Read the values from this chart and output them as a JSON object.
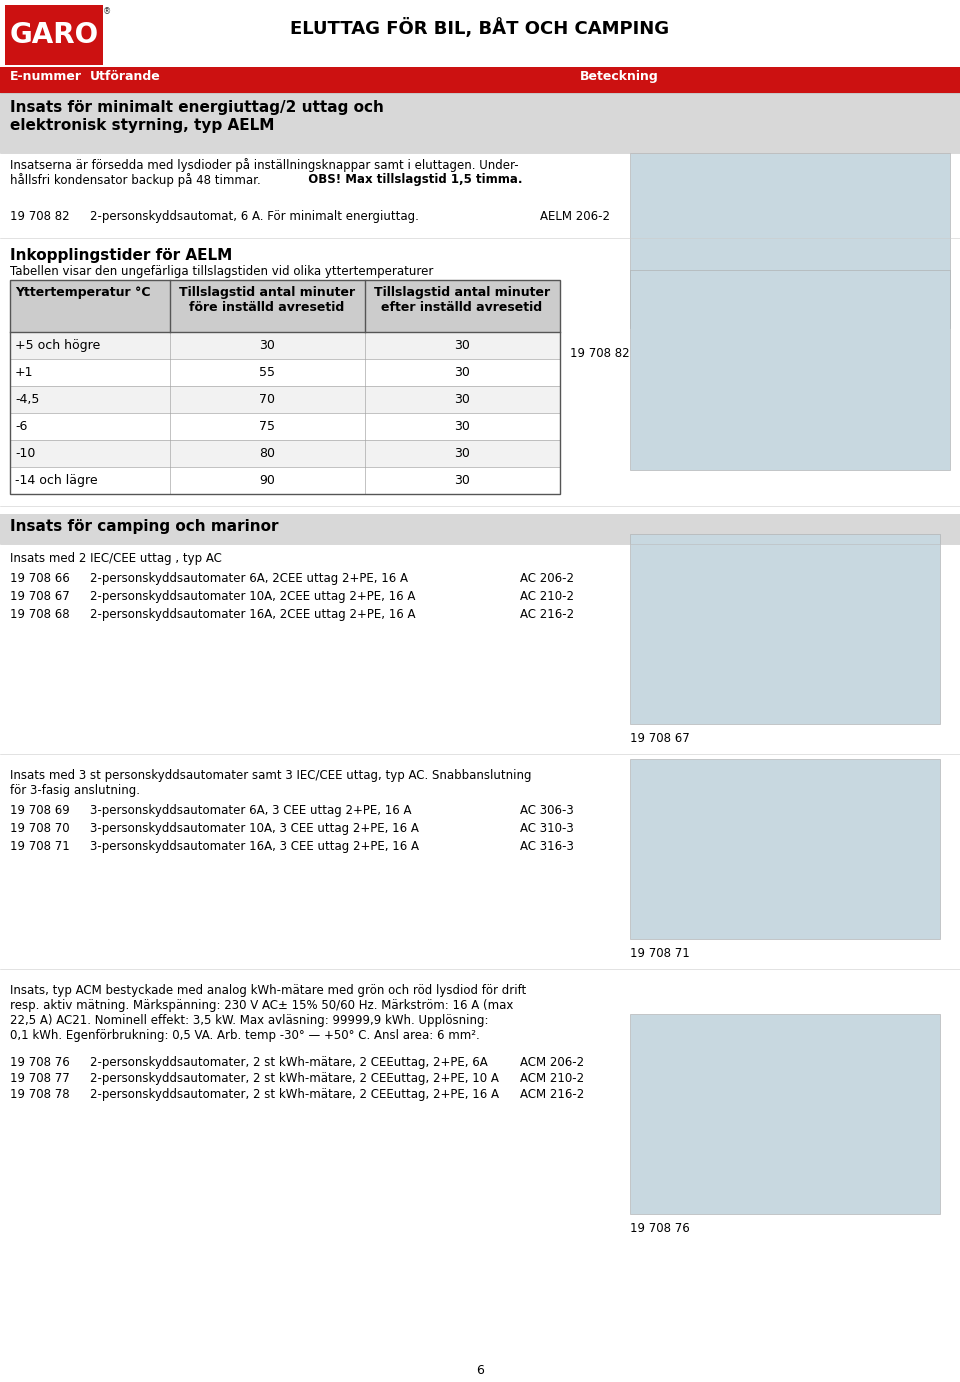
{
  "page_title": "ELUTTAG FÖR BIL, BÅT OCH CAMPING",
  "header_col1": "E-nummer",
  "header_col2": "Utförande",
  "header_col3": "Beteckning",
  "sec1_title_line1": "Insats för minimalt energiuttag/2 uttag och",
  "sec1_title_line2": "elektronisk styrning, typ AELM",
  "sec1_body1": "Insatserna är försedda med lysdioder på inställningsknappar samt i eluttagen. Under-",
  "sec1_body2": "hållsfri kondensator backup på 48 timmar.",
  "sec1_bold": "  OBS! Max tillslagstid 1,5 timma.",
  "sec1_prod_num": "19 708 82",
  "sec1_prod_desc": "2-personskyddsautomat, 6 A. För minimalt energiuttag.",
  "sec1_prod_bet": "AELM 206-2",
  "tbl_title": "Inkopplingstider för AELM",
  "tbl_subtitle": "Tabellen visar den ungefärliga tillslagstiden vid olika yttertemperaturer",
  "tbl_col1": "Yttertemperatur °C",
  "tbl_col2a": "Tillslagstid antal minuter",
  "tbl_col2b": "före inställd avresetid",
  "tbl_col3a": "Tillslagstid antal minuter",
  "tbl_col3b": "efter inställd avresetid",
  "tbl_ref": "19 708 82",
  "tbl_rows": [
    [
      "+5 och högre",
      "30",
      "30"
    ],
    [
      "+1",
      "55",
      "30"
    ],
    [
      "-4,5",
      "70",
      "30"
    ],
    [
      "-6",
      "75",
      "30"
    ],
    [
      "-10",
      "80",
      "30"
    ],
    [
      "-14 och lägre",
      "90",
      "30"
    ]
  ],
  "sec2_title": "Insats för camping och marinor",
  "sec2_sub": "Insats med 2 IEC/CEE uttag , typ AC",
  "sec2_prods": [
    [
      "19 708 66",
      "2-personskyddsautomater 6A, 2CEE uttag 2+PE, 16 A",
      "AC 206-2"
    ],
    [
      "19 708 67",
      "2-personskyddsautomater 10A, 2CEE uttag 2+PE, 16 A",
      "AC 210-2"
    ],
    [
      "19 708 68",
      "2-personskyddsautomater 16A, 2CEE uttag 2+PE, 16 A",
      "AC 216-2"
    ]
  ],
  "sec2_ref": "19 708 67",
  "sec3_body1": "Insats med 3 st personskyddsautomater samt 3 IEC/CEE uttag, typ AC. Snabbanslutning",
  "sec3_body2": "för 3-fasig anslutning.",
  "sec3_prods": [
    [
      "19 708 69",
      "3-personskyddsautomater 6A, 3 CEE uttag 2+PE, 16 A",
      "AC 306-3"
    ],
    [
      "19 708 70",
      "3-personskyddsautomater 10A, 3 CEE uttag 2+PE, 16 A",
      "AC 310-3"
    ],
    [
      "19 708 71",
      "3-personskyddsautomater 16A, 3 CEE uttag 2+PE, 16 A",
      "AC 316-3"
    ]
  ],
  "sec3_ref": "19 708 71",
  "sec4_body": [
    "Insats, typ ACM bestyckade med analog kWh-mätare med grön och röd lysdiod för drift",
    "resp. aktiv mätning. Märkspänning: 230 V AC± 15% 50/60 Hz. Märkström: 16 A (max",
    "22,5 A) AC21. Nominell effekt: 3,5 kW. Max avläsning: 99999,9 kWh. Upplösning:",
    "0,1 kWh. Egenförbrukning: 0,5 VA. Arb. temp -30° — +50° C. Ansl area: 6 mm²."
  ],
  "sec4_prods": [
    [
      "19 708 76",
      "2-personskyddsautomater, 2 st kWh-mätare, 2 CEEuttag, 2+PE, 6A",
      "ACM 206-2"
    ],
    [
      "19 708 77",
      "2-personskyddsautomater, 2 st kWh-mätare, 2 CEEuttag, 2+PE, 10 A",
      "ACM 210-2"
    ],
    [
      "19 708 78",
      "2-personskyddsautomater, 2 st kWh-mätare, 2 CEEuttag, 2+PE, 16 A",
      "ACM 216-2"
    ]
  ],
  "sec4_ref": "19 708 76",
  "page_number": "6",
  "red": "#cc1111",
  "gray_bg": "#d8d8d8",
  "white": "#ffffff",
  "black": "#000000",
  "tbl_hdr_gray": "#cccccc",
  "row_even": "#f2f2f2",
  "row_odd": "#ffffff",
  "img_placeholder": "#c8d8e0"
}
